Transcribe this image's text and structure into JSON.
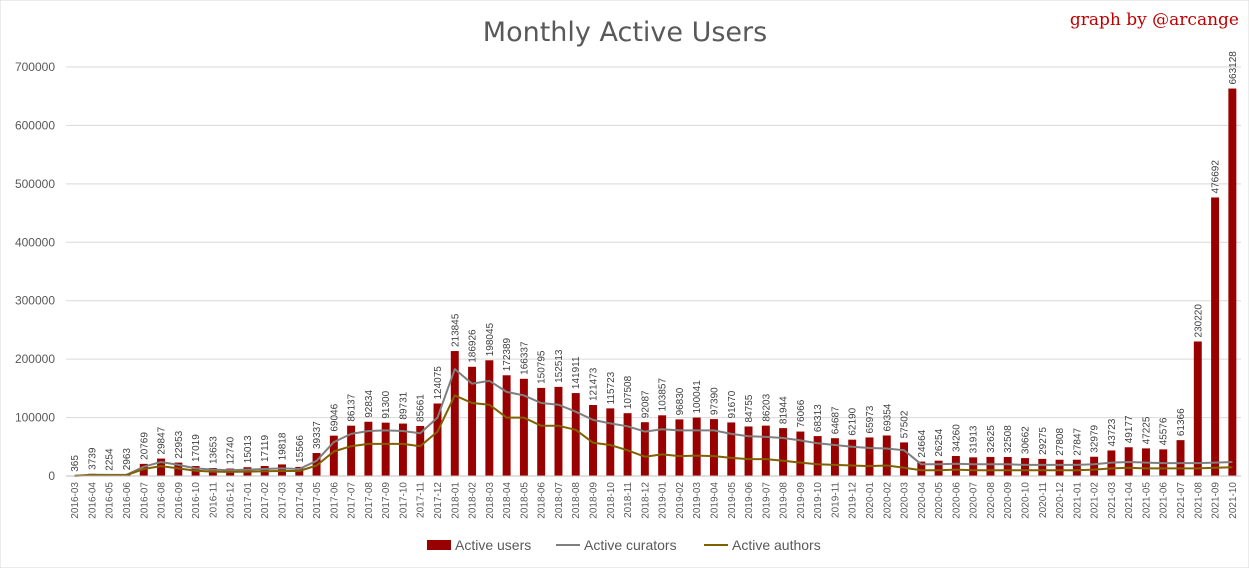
{
  "chart_data": {
    "type": "bar",
    "title": "Monthly Active Users",
    "credit": "graph by @arcange",
    "xlabel": "",
    "ylabel": "",
    "ylim": [
      0,
      700000
    ],
    "yticks": [
      "0",
      "100000",
      "200000",
      "300000",
      "400000",
      "500000",
      "600000",
      "700000"
    ],
    "grid": true,
    "legend_position": "bottom",
    "categories": [
      "2016-03",
      "2016-04",
      "2016-05",
      "2016-06",
      "2016-07",
      "2016-08",
      "2016-09",
      "2016-10",
      "2016-11",
      "2016-12",
      "2017-01",
      "2017-02",
      "2017-03",
      "2017-04",
      "2017-05",
      "2017-06",
      "2017-07",
      "2017-08",
      "2017-09",
      "2017-10",
      "2017-11",
      "2017-12",
      "2018-01",
      "2018-02",
      "2018-03",
      "2018-04",
      "2018-05",
      "2018-06",
      "2018-07",
      "2018-08",
      "2018-09",
      "2018-10",
      "2018-11",
      "2018-12",
      "2019-01",
      "2019-02",
      "2019-03",
      "2019-04",
      "2019-05",
      "2019-06",
      "2019-07",
      "2019-08",
      "2019-09",
      "2019-10",
      "2019-11",
      "2019-12",
      "2020-01",
      "2020-02",
      "2020-03",
      "2020-04",
      "2020-05",
      "2020-06",
      "2020-07",
      "2020-08",
      "2020-09",
      "2020-10",
      "2020-11",
      "2020-12",
      "2021-01",
      "2021-02",
      "2021-03",
      "2021-04",
      "2021-05",
      "2021-06",
      "2021-07",
      "2021-08",
      "2021-09",
      "2021-10"
    ],
    "series": [
      {
        "name": "Active users",
        "kind": "bar",
        "color": "#990000",
        "values": [
          365,
          3739,
          2254,
          2963,
          20769,
          29847,
          22953,
          17019,
          13653,
          12740,
          15013,
          17119,
          19818,
          15566,
          39337,
          69046,
          86137,
          92834,
          91300,
          89731,
          85661,
          124075,
          213845,
          186926,
          198045,
          172389,
          166337,
          150795,
          152513,
          141911,
          121473,
          115723,
          107508,
          92087,
          103857,
          96830,
          100041,
          97390,
          91670,
          84755,
          86203,
          81944,
          76066,
          68313,
          64687,
          62190,
          65973,
          69354,
          57502,
          24664,
          26254,
          34260,
          31913,
          32625,
          32508,
          30662,
          29275,
          27808,
          27847,
          32979,
          43723,
          49177,
          47225,
          45576,
          61366,
          230220,
          476692,
          663128
        ]
      },
      {
        "name": "Active curators",
        "kind": "line",
        "color": "#7f7f7f",
        "values": [
          300,
          2000,
          1800,
          2000,
          16000,
          24000,
          19000,
          13000,
          11000,
          10000,
          11000,
          12000,
          13000,
          12000,
          26000,
          58000,
          72000,
          77000,
          78000,
          77000,
          73000,
          100000,
          183000,
          158000,
          163000,
          144000,
          138000,
          125000,
          122000,
          110000,
          96000,
          90000,
          85000,
          76000,
          80000,
          78000,
          78000,
          78000,
          72000,
          68000,
          67000,
          65000,
          61000,
          56000,
          53000,
          50000,
          48000,
          47000,
          44000,
          20000,
          20000,
          21000,
          20000,
          20000,
          20000,
          19000,
          19000,
          19000,
          19000,
          20000,
          23000,
          24000,
          23000,
          22000,
          22000,
          22000,
          23000,
          24000
        ]
      },
      {
        "name": "Active authors",
        "kind": "line",
        "color": "#806000",
        "values": [
          200,
          1500,
          1200,
          1500,
          12000,
          17000,
          13000,
          9000,
          7500,
          7000,
          7500,
          8000,
          8500,
          8500,
          18000,
          42000,
          51000,
          55000,
          55000,
          55000,
          51000,
          76000,
          138000,
          125000,
          122000,
          100000,
          100000,
          86000,
          86000,
          79000,
          57000,
          53000,
          44000,
          33000,
          37000,
          34000,
          35000,
          34000,
          31000,
          29000,
          29000,
          26000,
          23000,
          20000,
          19000,
          18000,
          17000,
          18000,
          14000,
          10000,
          10000,
          11000,
          10000,
          10000,
          10000,
          10000,
          10000,
          10000,
          10000,
          11000,
          13000,
          14000,
          13000,
          13000,
          13000,
          13000,
          14000,
          15000
        ]
      }
    ]
  }
}
